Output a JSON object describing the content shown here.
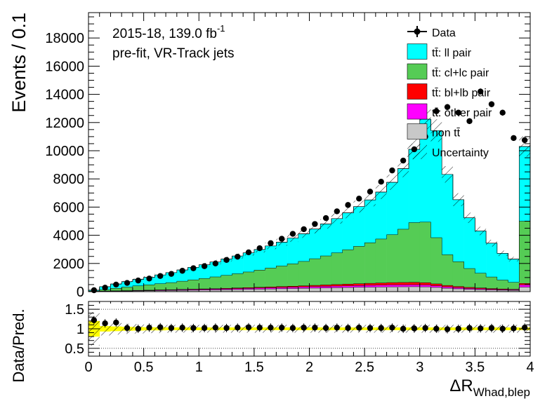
{
  "chart_data": [
    {
      "type": "stacked-histogram",
      "ylabel": "Events / 0.1",
      "yticks": [
        0,
        2000,
        4000,
        6000,
        8000,
        10000,
        12000,
        14000,
        16000,
        18000
      ],
      "ylim": [
        0,
        19800
      ],
      "xlim": [
        0,
        4
      ],
      "bin_width": 0.1,
      "annotation_line1": "2015-18, 139.0 fb",
      "annotation_sup": "-1",
      "annotation_line2": "pre-fit, VR-Track jets",
      "legend_position": "top-right",
      "x": [
        0.05,
        0.15,
        0.25,
        0.35,
        0.45,
        0.55,
        0.65,
        0.75,
        0.85,
        0.95,
        1.05,
        1.15,
        1.25,
        1.35,
        1.45,
        1.55,
        1.65,
        1.75,
        1.85,
        1.95,
        2.05,
        2.15,
        2.25,
        2.35,
        2.45,
        2.55,
        2.65,
        2.75,
        2.85,
        2.95,
        3.05,
        3.15,
        3.25,
        3.35,
        3.45,
        3.55,
        3.65,
        3.75,
        3.85,
        3.95
      ],
      "series": [
        {
          "name": "non tt̄",
          "color": "#c8c8c8",
          "values": [
            10,
            20,
            30,
            40,
            50,
            60,
            70,
            80,
            90,
            100,
            110,
            120,
            130,
            145,
            160,
            175,
            190,
            205,
            220,
            235,
            250,
            265,
            280,
            295,
            310,
            320,
            330,
            340,
            345,
            350,
            340,
            300,
            240,
            200,
            160,
            140,
            120,
            100,
            90,
            320
          ]
        },
        {
          "name": "tt̄: other pair",
          "color": "#ff00ff",
          "values": [
            5,
            10,
            15,
            20,
            25,
            30,
            35,
            40,
            45,
            50,
            55,
            60,
            65,
            70,
            75,
            80,
            85,
            90,
            95,
            100,
            105,
            110,
            115,
            120,
            125,
            130,
            135,
            140,
            140,
            140,
            135,
            120,
            100,
            85,
            70,
            60,
            50,
            45,
            40,
            160
          ]
        },
        {
          "name": "tt̄: bl+lb pair",
          "color": "#ff0000",
          "values": [
            5,
            5,
            10,
            10,
            15,
            15,
            20,
            20,
            25,
            25,
            30,
            35,
            40,
            45,
            50,
            55,
            60,
            65,
            70,
            80,
            90,
            100,
            110,
            120,
            130,
            140,
            150,
            160,
            165,
            170,
            160,
            130,
            100,
            80,
            70,
            60,
            50,
            45,
            40,
            100
          ]
        },
        {
          "name": "tt̄: cl+lc pair",
          "color": "#55cc55",
          "values": [
            30,
            100,
            180,
            250,
            320,
            380,
            440,
            500,
            580,
            660,
            740,
            830,
            920,
            1010,
            1110,
            1220,
            1340,
            1460,
            1590,
            1730,
            1890,
            2060,
            2250,
            2440,
            2650,
            2880,
            3120,
            3400,
            3780,
            4240,
            4300,
            3280,
            2180,
            1760,
            1340,
            1050,
            820,
            630,
            490,
            4420
          ]
        },
        {
          "name": "tt̄: ll pair",
          "color": "#00ffff",
          "values": [
            60,
            220,
            310,
            390,
            460,
            530,
            620,
            710,
            800,
            890,
            970,
            1060,
            1160,
            1260,
            1360,
            1460,
            1570,
            1690,
            1820,
            1960,
            2110,
            2270,
            2430,
            2620,
            2820,
            3040,
            3330,
            3720,
            4300,
            5200,
            7300,
            7600,
            5700,
            4400,
            3600,
            3000,
            2400,
            1900,
            1650,
            5300
          ]
        }
      ],
      "data_points": [
        100,
        280,
        500,
        620,
        790,
        930,
        1110,
        1260,
        1480,
        1660,
        1810,
        2000,
        2250,
        2480,
        2790,
        3080,
        3440,
        3750,
        4100,
        4430,
        4800,
        5220,
        5700,
        6150,
        6600,
        7100,
        7800,
        8600,
        9300,
        10100,
        11000,
        12800,
        13100,
        12700,
        12100,
        14200,
        13300,
        12700,
        10900,
        10750
      ],
      "uncertainty_fraction": 0.07,
      "legend": [
        "Data",
        "tt̄: ll pair",
        "tt̄: cl+lc pair",
        "tt̄: bl+lb pair",
        "tt̄: other pair",
        "non tt̄",
        "Uncertainty"
      ]
    },
    {
      "type": "ratio",
      "ylabel": "Data/Pred.",
      "yticks": [
        0.5,
        1,
        1.5
      ],
      "ylim": [
        0.3,
        1.7
      ],
      "xticks": [
        0,
        0.5,
        1,
        1.5,
        2,
        2.5,
        3,
        3.5,
        4
      ],
      "xlabel_main": "ΔR",
      "xlabel_sub": "Whad,blep",
      "ratio": [
        1.22,
        1.14,
        1.16,
        1.02,
        1.0,
        1.03,
        1.04,
        1.02,
        1.03,
        1.02,
        1.02,
        1.03,
        1.02,
        1.03,
        1.04,
        1.03,
        1.03,
        1.03,
        1.02,
        1.03,
        1.03,
        1.02,
        1.03,
        1.02,
        1.03,
        1.02,
        1.02,
        1.03,
        1.0,
        1.01,
        1.02,
        1.0,
        0.99,
        1.0,
        1.02,
        1.01,
        1.02,
        1.0,
        1.01,
        1.03
      ],
      "band_halfwidth": [
        0.4,
        0.14,
        0.12,
        0.1,
        0.09,
        0.08,
        0.08,
        0.07,
        0.07,
        0.07,
        0.07,
        0.07,
        0.07,
        0.07,
        0.07,
        0.07,
        0.07,
        0.07,
        0.07,
        0.07,
        0.07,
        0.07,
        0.07,
        0.07,
        0.07,
        0.07,
        0.07,
        0.07,
        0.07,
        0.07,
        0.07,
        0.07,
        0.07,
        0.07,
        0.07,
        0.07,
        0.07,
        0.07,
        0.07,
        0.07
      ]
    }
  ]
}
